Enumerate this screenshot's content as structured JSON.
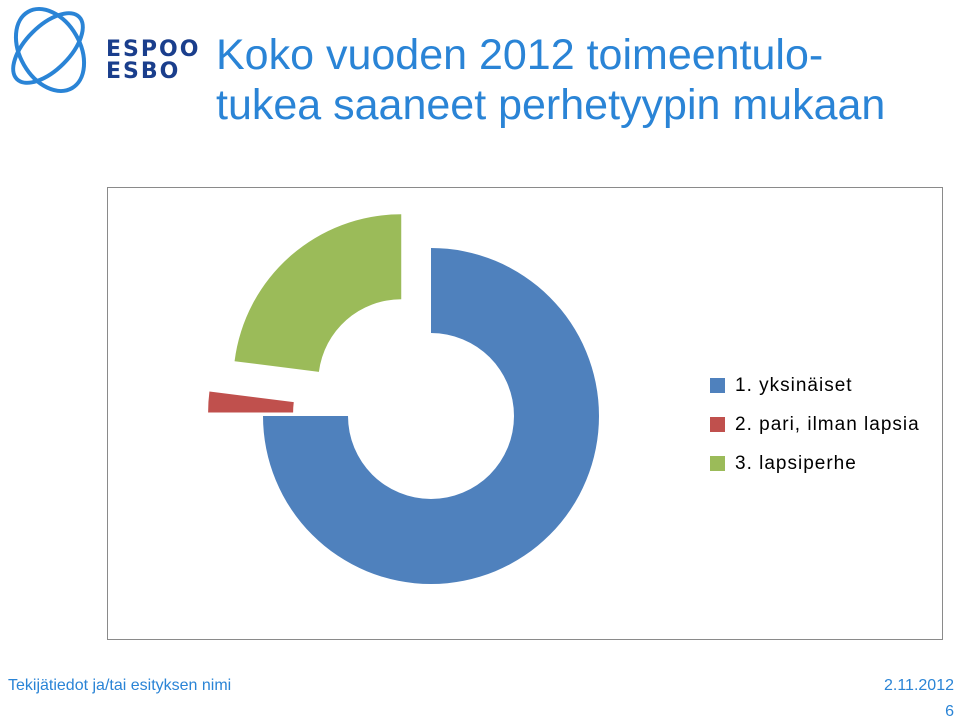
{
  "brand": {
    "line1": "ESPOO",
    "line2": "ESBO",
    "logo_color": "#1a3e8c",
    "ring_color": "#2a84d6"
  },
  "title": {
    "line1": "Koko vuoden 2012 toimeentulo-",
    "line2": "tukea saaneet perhetyypin mukaan",
    "color": "#2a84d6"
  },
  "chart_data": {
    "type": "pie",
    "variant": "exploded-doughnut",
    "title": "",
    "categories": [
      "1. yksinäiset",
      "2. pari, ilman lapsia",
      "3. lapsiperhe"
    ],
    "series": [
      {
        "values": [
          75,
          2,
          23
        ]
      }
    ],
    "colors": [
      "#4f81bd",
      "#c0504d",
      "#9bbb59"
    ],
    "legend_position": "right"
  },
  "footer": {
    "author_placeholder": "Tekijätiedot ja/tai esityksen nimi",
    "date": "2.11.2012",
    "page": "6"
  }
}
